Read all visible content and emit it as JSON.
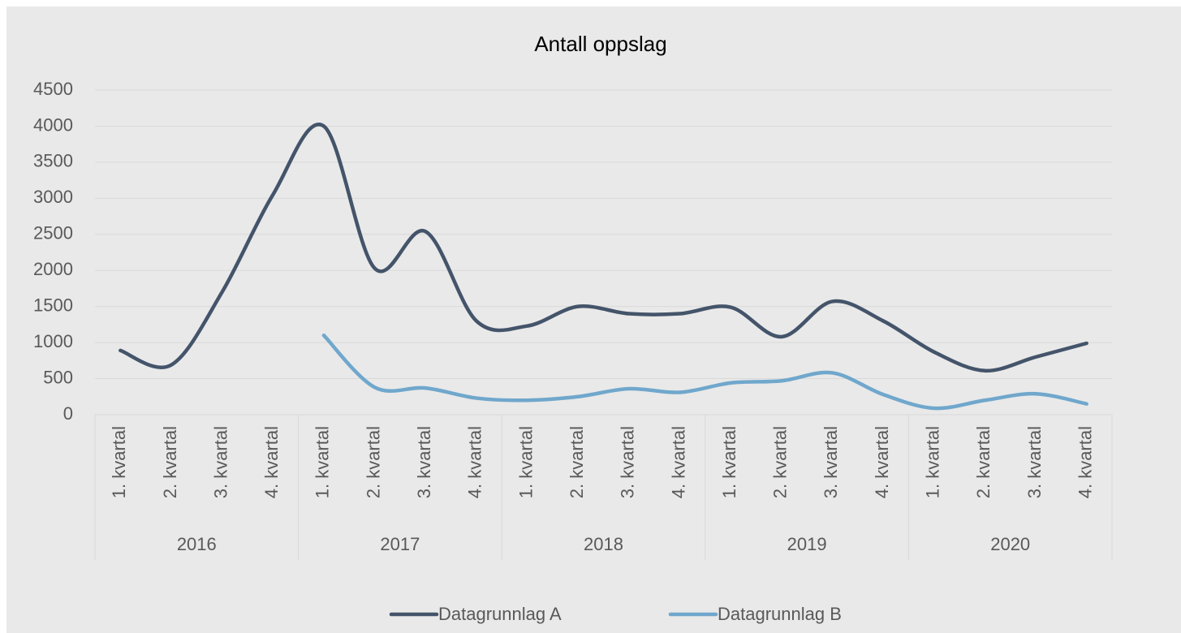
{
  "chart_data": {
    "type": "line",
    "title": "Antall oppslag",
    "categories": [
      "1. kvartal",
      "2. kvartal",
      "3. kvartal",
      "4. kvartal",
      "1. kvartal",
      "2. kvartal",
      "3. kvartal",
      "4. kvartal",
      "1. kvartal",
      "2. kvartal",
      "3. kvartal",
      "4. kvartal",
      "1. kvartal",
      "2. kvartal",
      "3. kvartal",
      "4. kvartal",
      "1. kvartal",
      "2. kvartal",
      "3. kvartal",
      "4. kvartal"
    ],
    "category_groups": [
      "2016",
      "2017",
      "2018",
      "2019",
      "2020"
    ],
    "series": [
      {
        "name": "Datagrunnlag A",
        "color": "#44546a",
        "values": [
          890,
          690,
          1700,
          3050,
          4000,
          2030,
          2540,
          1300,
          1230,
          1500,
          1400,
          1400,
          1490,
          1080,
          1570,
          1300,
          870,
          610,
          800,
          990
        ]
      },
      {
        "name": "Datagrunnlag B",
        "color": "#70a7cc",
        "values": [
          null,
          null,
          null,
          null,
          1100,
          380,
          370,
          230,
          200,
          250,
          360,
          310,
          440,
          470,
          580,
          280,
          90,
          200,
          290,
          150
        ]
      }
    ],
    "ylim": [
      0,
      4500
    ],
    "yticks": [
      0,
      500,
      1000,
      1500,
      2000,
      2500,
      3000,
      3500,
      4000,
      4500
    ],
    "grid": true,
    "smooth": true,
    "legend": "bottom"
  }
}
